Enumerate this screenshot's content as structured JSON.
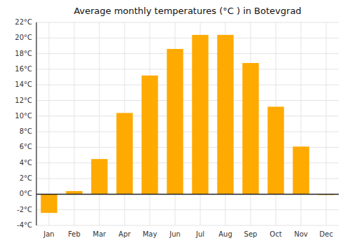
{
  "chart_data": {
    "type": "bar",
    "title": "Average monthly temperatures (°C ) in Botevgrad",
    "categories": [
      "Jan",
      "Feb",
      "Mar",
      "Apr",
      "May",
      "Jun",
      "Jul",
      "Aug",
      "Sep",
      "Oct",
      "Nov",
      "Dec"
    ],
    "values": [
      -2.4,
      0.4,
      4.5,
      10.4,
      15.2,
      18.6,
      20.4,
      20.4,
      16.8,
      11.2,
      6.1,
      -0.1
    ],
    "color": "#FFAA00",
    "ylim": [
      -4,
      22
    ],
    "yticks": [
      {
        "value": -4,
        "label": "-4°C"
      },
      {
        "value": -2,
        "label": "-2°C"
      },
      {
        "value": 0,
        "label": "0°C"
      },
      {
        "value": 2,
        "label": "2°C"
      },
      {
        "value": 4,
        "label": "4°C"
      },
      {
        "value": 6,
        "label": "6°C"
      },
      {
        "value": 8,
        "label": "8°C"
      },
      {
        "value": 10,
        "label": "10°C"
      },
      {
        "value": 12,
        "label": "12°C"
      },
      {
        "value": 14,
        "label": "14°C"
      },
      {
        "value": 16,
        "label": "16°C"
      },
      {
        "value": 18,
        "label": "18°C"
      },
      {
        "value": 20,
        "label": "20°C"
      },
      {
        "value": 22,
        "label": "22°C"
      }
    ],
    "grid": true
  }
}
